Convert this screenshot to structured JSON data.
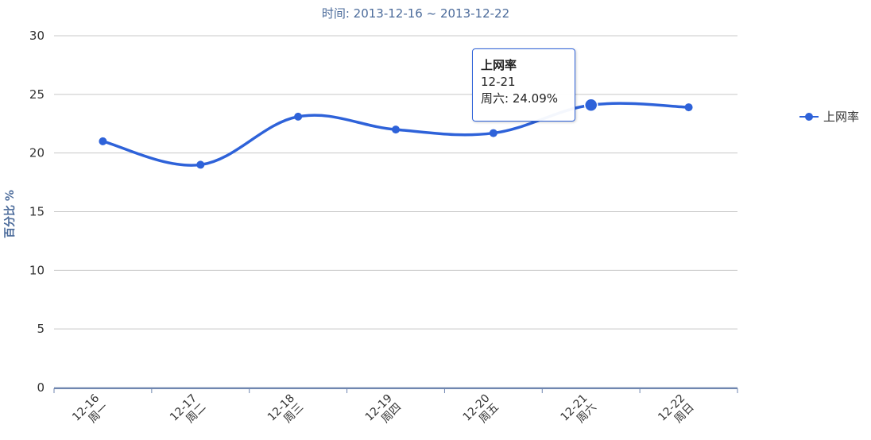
{
  "subtitle": "时间: 2013-12-16 ~ 2013-12-22",
  "colors": {
    "series": "#2e62d9",
    "grid": "#c8c8c8",
    "axis": "#4a6a9a"
  },
  "tooltip": {
    "series": "上网率",
    "date": "12-21",
    "text": "周六: 24.09%"
  },
  "chart_data": {
    "type": "line",
    "title": "",
    "subtitle": "时间: 2013-12-16 ~ 2013-12-22",
    "xlabel": "",
    "ylabel": "百分比 %",
    "ylim": [
      0,
      30
    ],
    "yticks": [
      0,
      5,
      10,
      15,
      20,
      25,
      30
    ],
    "grid": true,
    "legend_position": "right",
    "categories": [
      {
        "date": "12-16",
        "day": "周一"
      },
      {
        "date": "12-17",
        "day": "周二"
      },
      {
        "date": "12-18",
        "day": "周三"
      },
      {
        "date": "12-19",
        "day": "周四"
      },
      {
        "date": "12-20",
        "day": "周五"
      },
      {
        "date": "12-21",
        "day": "周六"
      },
      {
        "date": "12-22",
        "day": "周日"
      }
    ],
    "series": [
      {
        "name": "上网率",
        "values": [
          21.0,
          19.0,
          23.1,
          22.0,
          21.7,
          24.09,
          23.9
        ]
      }
    ],
    "highlighted_index": 5
  }
}
